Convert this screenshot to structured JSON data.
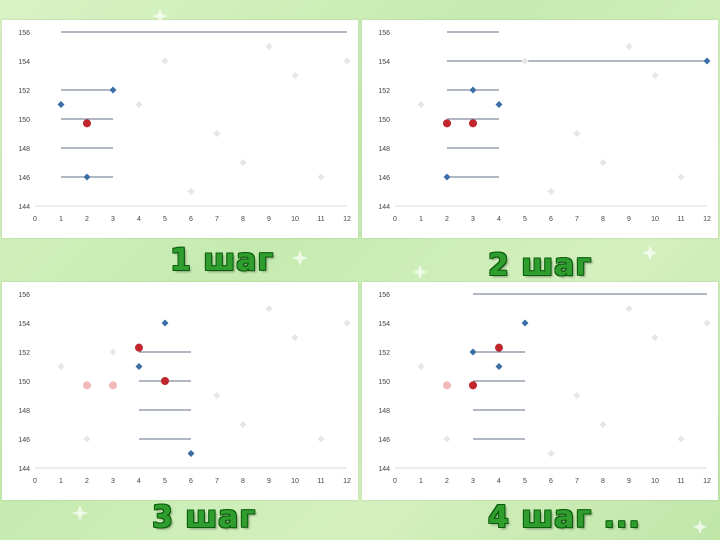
{
  "slide": {
    "labels": [
      "1 шаг",
      "2 шаг",
      "3 шаг",
      "4 шаг ..."
    ]
  },
  "chart_data": [
    {
      "type": "scatter",
      "title": "1 шаг",
      "x_ticks": [
        "0",
        "1",
        "2",
        "3",
        "4",
        "5",
        "6",
        "7",
        "8",
        "9",
        "10",
        "11",
        "12"
      ],
      "y_ticks": [
        "144",
        "146",
        "148",
        "150",
        "152",
        "154",
        "156"
      ],
      "xlim": [
        0,
        12
      ],
      "ylim": [
        144,
        156
      ],
      "background_points": [
        [
          4,
          151
        ],
        [
          5,
          154
        ],
        [
          6,
          145
        ],
        [
          7,
          149
        ],
        [
          8,
          147
        ],
        [
          9,
          155
        ],
        [
          10,
          153
        ],
        [
          11,
          146
        ],
        [
          12,
          154
        ]
      ],
      "blue_points": [
        [
          1,
          151
        ],
        [
          2,
          146
        ],
        [
          3,
          152
        ]
      ],
      "red_points": [
        [
          2,
          149.7
        ]
      ],
      "pink_points": [],
      "lines": [
        [
          1,
          3,
          156
        ],
        [
          3,
          12,
          156
        ],
        [
          1,
          3,
          152
        ],
        [
          1,
          3,
          150
        ],
        [
          1,
          3,
          148
        ],
        [
          1,
          3,
          146
        ]
      ],
      "colors": {
        "grey": "#b8b8b8",
        "blue": "#3b6ea5",
        "red": "#c0272d",
        "pink": "#f2b9bb",
        "faded": "#e6e6e6"
      }
    },
    {
      "type": "scatter",
      "title": "2 шаг",
      "x_ticks": [
        "0",
        "1",
        "2",
        "3",
        "4",
        "5",
        "6",
        "7",
        "8",
        "9",
        "10",
        "11",
        "12"
      ],
      "y_ticks": [
        "144",
        "146",
        "148",
        "150",
        "152",
        "154",
        "156"
      ],
      "xlim": [
        0,
        12
      ],
      "ylim": [
        144,
        156
      ],
      "background_points": [
        [
          1,
          151
        ],
        [
          5,
          154
        ],
        [
          6,
          145
        ],
        [
          7,
          149
        ],
        [
          8,
          147
        ],
        [
          9,
          155
        ],
        [
          10,
          153
        ],
        [
          11,
          146
        ]
      ],
      "blue_points": [
        [
          2,
          146
        ],
        [
          3,
          152
        ],
        [
          4,
          151
        ],
        [
          12,
          154
        ]
      ],
      "red_points": [
        [
          2,
          149.7
        ],
        [
          3,
          149.7
        ]
      ],
      "pink_points": [
        [
          2,
          149.7
        ]
      ],
      "lines": [
        [
          2,
          4,
          156
        ],
        [
          2,
          4,
          154
        ],
        [
          2,
          4,
          152
        ],
        [
          2,
          4,
          150
        ],
        [
          2,
          4,
          148
        ],
        [
          2,
          4,
          146
        ],
        [
          4,
          12,
          154
        ]
      ],
      "colors": {
        "grey": "#b8b8b8",
        "blue": "#3b6ea5",
        "red": "#c0272d",
        "pink": "#f2b9bb",
        "faded": "#e6e6e6"
      }
    },
    {
      "type": "scatter",
      "title": "3 шаг",
      "x_ticks": [
        "0",
        "1",
        "2",
        "3",
        "4",
        "5",
        "6",
        "7",
        "8",
        "9",
        "10",
        "11",
        "12"
      ],
      "y_ticks": [
        "144",
        "146",
        "148",
        "150",
        "152",
        "154",
        "156"
      ],
      "xlim": [
        0,
        12
      ],
      "ylim": [
        144,
        156
      ],
      "background_points": [
        [
          1,
          151
        ],
        [
          2,
          146
        ],
        [
          3,
          152
        ],
        [
          7,
          149
        ],
        [
          8,
          147
        ],
        [
          9,
          155
        ],
        [
          10,
          153
        ],
        [
          11,
          146
        ],
        [
          12,
          154
        ]
      ],
      "blue_points": [
        [
          4,
          151
        ],
        [
          5,
          154
        ],
        [
          6,
          145
        ]
      ],
      "red_points": [
        [
          4,
          152.3
        ],
        [
          5,
          150
        ]
      ],
      "pink_points": [
        [
          2,
          149.7
        ],
        [
          3,
          149.7
        ],
        [
          4,
          152.3
        ]
      ],
      "lines": [
        [
          4,
          6,
          152
        ],
        [
          4,
          6,
          150
        ],
        [
          4,
          6,
          148
        ],
        [
          4,
          6,
          146
        ]
      ],
      "colors": {
        "grey": "#b8b8b8",
        "blue": "#3b6ea5",
        "red": "#c0272d",
        "pink": "#f2b9bb",
        "faded": "#e6e6e6"
      }
    },
    {
      "type": "scatter",
      "title": "4 шаг ...",
      "x_ticks": [
        "0",
        "1",
        "2",
        "3",
        "4",
        "5",
        "6",
        "7",
        "8",
        "9",
        "10",
        "11",
        "12"
      ],
      "y_ticks": [
        "144",
        "146",
        "148",
        "150",
        "152",
        "154",
        "156"
      ],
      "xlim": [
        0,
        12
      ],
      "ylim": [
        144,
        156
      ],
      "background_points": [
        [
          1,
          151
        ],
        [
          2,
          146
        ],
        [
          6,
          145
        ],
        [
          7,
          149
        ],
        [
          8,
          147
        ],
        [
          9,
          155
        ],
        [
          10,
          153
        ],
        [
          11,
          146
        ],
        [
          12,
          154
        ]
      ],
      "blue_points": [
        [
          3,
          152
        ],
        [
          4,
          151
        ],
        [
          5,
          154
        ]
      ],
      "red_points": [
        [
          3,
          149.7
        ],
        [
          4,
          152.3
        ]
      ],
      "pink_points": [
        [
          2,
          149.7
        ],
        [
          3,
          149.7
        ]
      ],
      "lines": [
        [
          3,
          12,
          156
        ],
        [
          3,
          5,
          152
        ],
        [
          3,
          5,
          150
        ],
        [
          3,
          5,
          148
        ],
        [
          3,
          5,
          146
        ]
      ],
      "colors": {
        "grey": "#b8b8b8",
        "blue": "#3b6ea5",
        "red": "#c0272d",
        "pink": "#f2b9bb",
        "faded": "#e6e6e6"
      }
    }
  ]
}
